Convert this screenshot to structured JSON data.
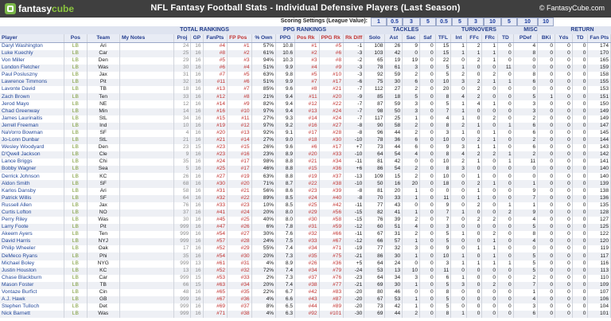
{
  "header": {
    "logo_prefix": "fantasy",
    "logo_suffix": "cube",
    "title": "NFL Fantasy Football Stats - Individual Defensive Players (Last Season)",
    "copyright": "© FantasyCube.com"
  },
  "scoring": {
    "label": "Scoring Settings (League Value):",
    "values": [
      "1",
      "0.5",
      "3",
      "5",
      "0.5",
      "5",
      "3",
      "10",
      "5",
      "10",
      "10"
    ]
  },
  "groups": {
    "total": "TOTAL RANKINGS",
    "ppg": "PPG RANKINGS",
    "tackles": "TACKLES",
    "turnovers": "TURNOVERS",
    "misc": "MISC",
    "return": "RETURN"
  },
  "columns": [
    "Player",
    "Pos",
    "Team",
    "My Notes",
    "Proj",
    "GP",
    "FanPts",
    "FP Pos",
    "% Own",
    "PPG",
    "Pos Rk",
    "PPG Rk",
    "Rk Diff",
    "Solo",
    "Ast",
    "Sac",
    "Saf",
    "TFL",
    "Int",
    "FFc",
    "FRc",
    "TD",
    "PDef",
    "BKi",
    "Yds",
    "TD",
    "Fan Pts"
  ],
  "rows": [
    [
      "Daryl Washington",
      "LB",
      "Ari",
      "",
      "24",
      "16",
      "#4",
      "#1",
      "57%",
      "10.8",
      "#1",
      "#5",
      "-1",
      "108",
      "26",
      "9",
      "0",
      "15",
      "1",
      "2",
      "1",
      "0",
      "4",
      "0",
      "0",
      "0",
      "174"
    ],
    [
      "Luke Kuechly",
      "LB",
      "Car",
      "",
      "25",
      "16",
      "#8",
      "#2",
      "61%",
      "10.6",
      "#2",
      "#6",
      "-3",
      "103",
      "42",
      "0",
      "0",
      "15",
      "1",
      "1",
      "1",
      "0",
      "8",
      "0",
      "0",
      "0",
      "170"
    ],
    [
      "Von Miller",
      "LB",
      "Den",
      "",
      "29",
      "16",
      "#5",
      "#3",
      "94%",
      "10.3",
      "#3",
      "#8",
      "-2",
      "65",
      "19",
      "19",
      "0",
      "22",
      "0",
      "2",
      "1",
      "0",
      "0",
      "0",
      "0",
      "0",
      "165"
    ],
    [
      "London Fletcher",
      "LB",
      "Was",
      "",
      "30",
      "16",
      "#6",
      "#4",
      "51%",
      "9.9",
      "#4",
      "#9",
      "-3",
      "78",
      "61",
      "3",
      "0",
      "5",
      "1",
      "0",
      "0",
      "11",
      "0",
      "0",
      "0",
      "0",
      "159"
    ],
    [
      "Paul Posluszny",
      "LB",
      "Jax",
      "",
      "31",
      "16",
      "#7",
      "#5",
      "63%",
      "9.8",
      "#5",
      "#10",
      "-3",
      "92",
      "59",
      "2",
      "0",
      "5",
      "2",
      "0",
      "2",
      "0",
      "8",
      "0",
      "0",
      "0",
      "158"
    ],
    [
      "Lawrence Timmons",
      "LB",
      "Pit",
      "",
      "32",
      "16",
      "#11",
      "#6",
      "51%",
      "9.9",
      "#7",
      "#17",
      "-6",
      "75",
      "30",
      "6",
      "0",
      "10",
      "3",
      "2",
      "1",
      "1",
      "6",
      "0",
      "0",
      "0",
      "155"
    ],
    [
      "Lavonte David",
      "LB",
      "TB",
      "",
      "18",
      "16",
      "#13",
      "#7",
      "85%",
      "9.6",
      "#8",
      "#21",
      "-7",
      "112",
      "27",
      "2",
      "0",
      "20",
      "0",
      "2",
      "0",
      "0",
      "0",
      "0",
      "0",
      "0",
      "153"
    ],
    [
      "Zach Brown",
      "LB",
      "Ten",
      "",
      "33",
      "16",
      "#12",
      "#8",
      "21%",
      "9.4",
      "#11",
      "#20",
      "-9",
      "85",
      "18",
      "5",
      "0",
      "8",
      "4",
      "2",
      "0",
      "0",
      "5",
      "1",
      "0",
      "0",
      "151"
    ],
    [
      "Jerod Mayo",
      "LB",
      "NE",
      "",
      "12",
      "16",
      "#14",
      "#9",
      "82%",
      "9.4",
      "#12",
      "#22",
      "-7",
      "87",
      "59",
      "3",
      "0",
      "5",
      "1",
      "4",
      "1",
      "0",
      "3",
      "0",
      "0",
      "0",
      "150"
    ],
    [
      "Chad Greenway",
      "LB",
      "Min",
      "",
      "14",
      "16",
      "#16",
      "#10",
      "97%",
      "9.4",
      "#13",
      "#24",
      "-7",
      "98",
      "50",
      "3",
      "0",
      "7",
      "1",
      "0",
      "0",
      "0",
      "3",
      "0",
      "0",
      "0",
      "149"
    ],
    [
      "James Laurinaitis",
      "LB",
      "StL",
      "",
      "34",
      "16",
      "#15",
      "#11",
      "27%",
      "9.3",
      "#14",
      "#24",
      "-7",
      "117",
      "25",
      "1",
      "0",
      "4",
      "1",
      "0",
      "2",
      "0",
      "2",
      "0",
      "0",
      "0",
      "149"
    ],
    [
      "Jerrell Freeman",
      "LB",
      "Ind",
      "",
      "10",
      "16",
      "#19",
      "#12",
      "97%",
      "9.2",
      "#16",
      "#27",
      "-8",
      "90",
      "58",
      "2",
      "0",
      "8",
      "2",
      "1",
      "0",
      "1",
      "6",
      "0",
      "0",
      "0",
      "147"
    ],
    [
      "NaVorro Bowman",
      "LB",
      "SF",
      "",
      "4",
      "16",
      "#20",
      "#13",
      "92%",
      "9.1",
      "#17",
      "#28",
      "-8",
      "96",
      "44",
      "2",
      "0",
      "3",
      "1",
      "0",
      "1",
      "0",
      "6",
      "0",
      "0",
      "0",
      "145"
    ],
    [
      "Jo-Lonn Dunbar",
      "LB",
      "StL",
      "",
      "21",
      "16",
      "#21",
      "#14",
      "27%",
      "9.0",
      "#18",
      "#30",
      "-10",
      "78",
      "36",
      "6",
      "0",
      "10",
      "0",
      "2",
      "1",
      "0",
      "2",
      "0",
      "0",
      "0",
      "144"
    ],
    [
      "Wesley Woodyard",
      "LB",
      "Den",
      "",
      "23",
      "15",
      "#23",
      "#15",
      "26%",
      "9.6",
      "#6",
      "#17",
      "+7",
      "73",
      "44",
      "6",
      "0",
      "9",
      "3",
      "1",
      "1",
      "0",
      "6",
      "0",
      "0",
      "0",
      "143"
    ],
    [
      "D'Qwell Jackson",
      "LB",
      "Cle",
      "",
      "9",
      "16",
      "#23",
      "#16",
      "23%",
      "8.9",
      "#20",
      "#33",
      "-10",
      "64",
      "54",
      "4",
      "0",
      "8",
      "4",
      "2",
      "2",
      "1",
      "2",
      "0",
      "0",
      "0",
      "142"
    ],
    [
      "Lance Briggs",
      "LB",
      "Chi",
      "",
      "35",
      "16",
      "#24",
      "#17",
      "98%",
      "8.8",
      "#21",
      "#34",
      "-11",
      "81",
      "42",
      "0",
      "0",
      "10",
      "2",
      "1",
      "0",
      "1",
      "11",
      "0",
      "0",
      "0",
      "141"
    ],
    [
      "Bobby Wagner",
      "LB",
      "Sea",
      "",
      "5",
      "16",
      "#25",
      "#17",
      "46%",
      "8.8",
      "#15",
      "#36",
      "+6",
      "86",
      "54",
      "2",
      "0",
      "8",
      "3",
      "0",
      "0",
      "0",
      "0",
      "0",
      "0",
      "0",
      "140"
    ],
    [
      "Derrick Johnson",
      "LB",
      "KC",
      "",
      "26",
      "16",
      "#27",
      "#19",
      "63%",
      "8.8",
      "#19",
      "#37",
      "-13",
      "109",
      "15",
      "2",
      "0",
      "10",
      "0",
      "1",
      "0",
      "0",
      "0",
      "0",
      "0",
      "0",
      "140"
    ],
    [
      "Aldon Smith",
      "LB",
      "SF",
      "",
      "68",
      "16",
      "#30",
      "#20",
      "71%",
      "8.7",
      "#22",
      "#38",
      "-10",
      "50",
      "16",
      "20",
      "0",
      "18",
      "0",
      "2",
      "1",
      "0",
      "1",
      "0",
      "0",
      "0",
      "139"
    ],
    [
      "Karlos Dansby",
      "LB",
      "Ari",
      "",
      "58",
      "16",
      "#31",
      "#21",
      "56%",
      "8.6",
      "#23",
      "#39",
      "-8",
      "81",
      "20",
      "1",
      "0",
      "0",
      "0",
      "1",
      "0",
      "0",
      "9",
      "0",
      "0",
      "0",
      "138"
    ],
    [
      "Patrick Willis",
      "LB",
      "SF",
      "",
      "64",
      "16",
      "#32",
      "#22",
      "89%",
      "8.5",
      "#24",
      "#40",
      "-8",
      "70",
      "33",
      "1",
      "0",
      "11",
      "0",
      "1",
      "0",
      "0",
      "7",
      "0",
      "0",
      "0",
      "136"
    ],
    [
      "Russell Allen",
      "LB",
      "Jax",
      "",
      "76",
      "16",
      "#33",
      "#23",
      "10%",
      "8.5",
      "#25",
      "#42",
      "-11",
      "77",
      "43",
      "0",
      "0",
      "9",
      "0",
      "2",
      "0",
      "1",
      "1",
      "0",
      "0",
      "0",
      "135"
    ],
    [
      "Curtis Lofton",
      "LB",
      "NO",
      "",
      "37",
      "16",
      "#41",
      "#24",
      "20%",
      "8.0",
      "#29",
      "#56",
      "-15",
      "82",
      "41",
      "1",
      "0",
      "7",
      "1",
      "0",
      "0",
      "2",
      "9",
      "0",
      "0",
      "0",
      "128"
    ],
    [
      "Perry Riley",
      "LB",
      "Was",
      "",
      "30",
      "16",
      "#45",
      "#25",
      "40%",
      "8.0",
      "#30",
      "#58",
      "-15",
      "76",
      "39",
      "2",
      "0",
      "7",
      "0",
      "2",
      "2",
      "0",
      "4",
      "0",
      "0",
      "0",
      "127"
    ],
    [
      "Larry Foote",
      "LB",
      "Pit",
      "",
      "999",
      "16",
      "#47",
      "#26",
      "6%",
      "7.8",
      "#31",
      "#59",
      "-12",
      "60",
      "51",
      "4",
      "0",
      "3",
      "0",
      "0",
      "0",
      "0",
      "5",
      "0",
      "0",
      "0",
      "125"
    ],
    [
      "Akeem Ayers",
      "LB",
      "Ten",
      "",
      "999",
      "16",
      "#54",
      "#27",
      "30%",
      "7.6",
      "#32",
      "#66",
      "-11",
      "67",
      "31",
      "2",
      "0",
      "5",
      "1",
      "0",
      "2",
      "0",
      "8",
      "0",
      "0",
      "0",
      "122"
    ],
    [
      "David Harris",
      "LB",
      "NYJ",
      "",
      "999",
      "16",
      "#57",
      "#28",
      "24%",
      "7.5",
      "#33",
      "#67",
      "-12",
      "66",
      "57",
      "1",
      "0",
      "5",
      "0",
      "0",
      "1",
      "0",
      "4",
      "0",
      "0",
      "0",
      "120"
    ],
    [
      "Philip Wheeler",
      "LB",
      "Oak",
      "",
      "17",
      "16",
      "#52",
      "#29",
      "55%",
      "7.4",
      "#34",
      "#71",
      "-19",
      "77",
      "32",
      "3",
      "0",
      "9",
      "0",
      "1",
      "1",
      "0",
      "0",
      "0",
      "0",
      "0",
      "119"
    ],
    [
      "DeMeco Ryans",
      "LB",
      "Phi",
      "",
      "35",
      "16",
      "#54",
      "#30",
      "20%",
      "7.3",
      "#35",
      "#75",
      "-21",
      "86",
      "30",
      "1",
      "0",
      "10",
      "1",
      "0",
      "1",
      "0",
      "5",
      "0",
      "0",
      "0",
      "117"
    ],
    [
      "Michael Boley",
      "LB",
      "NYG",
      "",
      "999",
      "13",
      "#61",
      "#31",
      "4%",
      "8.9",
      "#26",
      "#36",
      "+5",
      "64",
      "24",
      "0",
      "0",
      "3",
      "1",
      "1",
      "1",
      "1",
      "5",
      "0",
      "0",
      "0",
      "116"
    ],
    [
      "Justin Houston",
      "LB",
      "KC",
      "",
      "13",
      "16",
      "#52",
      "#32",
      "72%",
      "7.4",
      "#34",
      "#79",
      "-24",
      "53",
      "13",
      "10",
      "0",
      "11",
      "0",
      "0",
      "0",
      "0",
      "5",
      "0",
      "0",
      "0",
      "113"
    ],
    [
      "Chase Blackburn",
      "LB",
      "Car",
      "",
      "999",
      "15",
      "#53",
      "#33",
      "2%",
      "7.3",
      "#37",
      "#76",
      "-23",
      "64",
      "34",
      "3",
      "0",
      "6",
      "1",
      "0",
      "0",
      "0",
      "2",
      "0",
      "0",
      "0",
      "110"
    ],
    [
      "Mason Foster",
      "LB",
      "TB",
      "",
      "66",
      "15",
      "#63",
      "#34",
      "20%",
      "7.4",
      "#38",
      "#77",
      "-21",
      "69",
      "30",
      "1",
      "0",
      "5",
      "3",
      "0",
      "2",
      "0",
      "7",
      "0",
      "0",
      "0",
      "109"
    ],
    [
      "Vontaze Burfict",
      "LB",
      "Cin",
      "",
      "48",
      "16",
      "#65",
      "#35",
      "22%",
      "6.7",
      "#42",
      "#83",
      "-20",
      "80",
      "46",
      "0",
      "0",
      "8",
      "0",
      "0",
      "0",
      "0",
      "1",
      "0",
      "0",
      "0",
      "107"
    ],
    [
      "A.J. Hawk",
      "LB",
      "GB",
      "",
      "999",
      "16",
      "#67",
      "#36",
      "4%",
      "6.6",
      "#43",
      "#87",
      "-20",
      "67",
      "53",
      "1",
      "0",
      "5",
      "0",
      "0",
      "0",
      "0",
      "4",
      "0",
      "0",
      "0",
      "106"
    ],
    [
      "Stephen Tulloch",
      "LB",
      "Det",
      "",
      "999",
      "16",
      "#69",
      "#37",
      "8%",
      "6.5",
      "#44",
      "#89",
      "-20",
      "73",
      "42",
      "1",
      "0",
      "5",
      "0",
      "0",
      "0",
      "0",
      "3",
      "0",
      "0",
      "0",
      "104"
    ],
    [
      "Nick Barnett",
      "LB",
      "Was",
      "",
      "999",
      "16",
      "#71",
      "#38",
      "4%",
      "6.3",
      "#92",
      "#101",
      "-30",
      "69",
      "44",
      "2",
      "0",
      "8",
      "1",
      "0",
      "0",
      "0",
      "6",
      "0",
      "0",
      "0",
      "101"
    ]
  ]
}
